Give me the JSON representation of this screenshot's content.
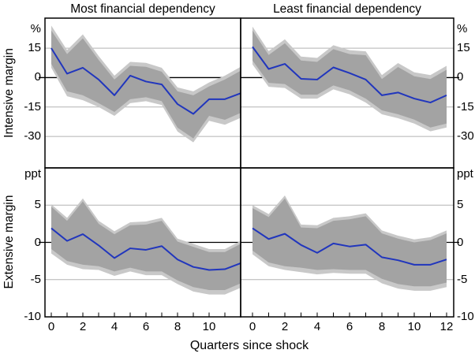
{
  "figure": {
    "columns": [
      "Most financial dependency",
      "Least financial dependency"
    ],
    "rows": [
      "Intensive margin",
      "Extensive margin"
    ],
    "units": {
      "top": "%",
      "bottom": "ppt"
    },
    "xlabel": "Quarters since shock"
  },
  "colors": {
    "line": "#2136bd",
    "band_dark": "#a3a3a3",
    "band_light": "#c8c8c8",
    "grid": "#b3b3b3",
    "axis": "#000000",
    "background": "#ffffff"
  },
  "axes": {
    "rows": [
      {
        "unit": "%",
        "yticks": [
          15,
          0,
          -15,
          -30
        ],
        "ylim": [
          -45,
          30
        ]
      },
      {
        "unit": "ppt",
        "yticks": [
          5,
          0,
          -5,
          -10
        ],
        "ylim": [
          -10,
          10
        ]
      }
    ],
    "x": {
      "min": 0,
      "max": 12,
      "ticks_labeled_left": [
        0,
        2,
        4,
        6,
        8,
        10
      ],
      "ticks_labeled_right": [
        0,
        2,
        4,
        6,
        8,
        10,
        12
      ]
    }
  },
  "chart_data": [
    {
      "type": "line",
      "row": 0,
      "col": 0,
      "title": "Most financial dependency",
      "ylabel": "Intensive margin",
      "unit": "%",
      "x": [
        0,
        1,
        2,
        3,
        4,
        5,
        6,
        7,
        8,
        9,
        10,
        11,
        12
      ],
      "line": [
        15,
        2,
        5,
        -1,
        -9,
        1,
        -2,
        -3.5,
        -13.5,
        -18.5,
        -11,
        -11,
        -8
      ],
      "band_dark": {
        "hi": [
          24,
          12,
          20,
          9,
          -1,
          6,
          5.5,
          3,
          -7,
          -9,
          -4.5,
          -1,
          3.5
        ],
        "lo": [
          7,
          -7,
          -9,
          -13,
          -17.5,
          -11,
          -10,
          -12,
          -25.5,
          -31,
          -19.5,
          -21.5,
          -18
        ]
      },
      "band_light": {
        "hi": [
          26.5,
          14,
          22,
          11,
          1,
          8,
          7.5,
          5,
          -5,
          -7,
          -2.5,
          1,
          5.5
        ],
        "lo": [
          5,
          -9.5,
          -11.5,
          -15,
          -19.5,
          -13,
          -12,
          -14,
          -27.5,
          -33,
          -22,
          -24,
          -20.5
        ]
      }
    },
    {
      "type": "line",
      "row": 0,
      "col": 1,
      "title": "Least financial dependency",
      "ylabel": "Intensive margin",
      "unit": "%",
      "x": [
        0,
        1,
        2,
        3,
        4,
        5,
        6,
        7,
        8,
        9,
        10,
        11,
        12
      ],
      "line": [
        15.7,
        4.4,
        7,
        -0.6,
        -1,
        5.2,
        2.3,
        -1,
        -9,
        -7.6,
        -10.7,
        -12.7,
        -9
      ],
      "band_dark": {
        "hi": [
          24,
          11.5,
          17.5,
          8.7,
          8,
          14.5,
          12,
          11.4,
          -0.7,
          5.4,
          0.7,
          -0.7,
          4
        ],
        "lo": [
          8.7,
          -2.7,
          -3.3,
          -8.7,
          -8.7,
          -4,
          -6.5,
          -10.7,
          -16.7,
          -18.7,
          -21.4,
          -25.4,
          -23.4
        ]
      },
      "band_light": {
        "hi": [
          26,
          13.5,
          19.5,
          10.7,
          10,
          16.5,
          14,
          13.4,
          1.3,
          7.4,
          2.7,
          1.3,
          6
        ],
        "lo": [
          6.7,
          -4.7,
          -5.3,
          -10.7,
          -10.7,
          -6,
          -8.5,
          -12.7,
          -18.7,
          -20.7,
          -23.4,
          -27.4,
          -25.4
        ]
      }
    },
    {
      "type": "line",
      "row": 1,
      "col": 0,
      "title": "Most financial dependency",
      "ylabel": "Extensive margin",
      "unit": "ppt",
      "x": [
        0,
        1,
        2,
        3,
        4,
        5,
        6,
        7,
        8,
        9,
        10,
        11,
        12
      ],
      "line": [
        1.9,
        0.2,
        1.1,
        -0.4,
        -2.1,
        -0.8,
        -1.0,
        -0.5,
        -2.3,
        -3.3,
        -3.7,
        -3.6,
        -2.8
      ],
      "band_dark": {
        "hi": [
          4.8,
          2.9,
          5.5,
          2.5,
          1.1,
          2.3,
          2.4,
          2.9,
          0.1,
          -0.6,
          -1.3,
          -1.3,
          -0.2
        ],
        "lo": [
          -0.9,
          -2.5,
          -3.0,
          -3.2,
          -3.9,
          -3.4,
          -3.9,
          -3.9,
          -5.1,
          -6.0,
          -6.4,
          -6.4,
          -5.5
        ]
      },
      "band_light": {
        "hi": [
          5.1,
          3.3,
          5.9,
          2.9,
          1.5,
          2.7,
          2.8,
          3.3,
          0.5,
          -0.2,
          -0.9,
          -0.9,
          0.2
        ],
        "lo": [
          -1.5,
          -3.0,
          -3.6,
          -3.7,
          -4.5,
          -3.9,
          -4.4,
          -4.4,
          -5.6,
          -6.6,
          -7.0,
          -7.0,
          -6.1
        ]
      }
    },
    {
      "type": "line",
      "row": 1,
      "col": 1,
      "title": "Least financial dependency",
      "ylabel": "Extensive margin",
      "unit": "ppt",
      "x": [
        0,
        1,
        2,
        3,
        4,
        5,
        6,
        7,
        8,
        9,
        10,
        11,
        12
      ],
      "line": [
        1.9,
        0.45,
        1.15,
        -0.35,
        -1.4,
        -0.15,
        -0.55,
        -0.3,
        -2.0,
        -2.4,
        -3.0,
        -3.0,
        -2.3
      ],
      "band_dark": {
        "hi": [
          4.6,
          3.4,
          5.9,
          2.0,
          1.9,
          2.9,
          3.1,
          3.5,
          1.2,
          0.5,
          0.0,
          0.3,
          1.2
        ],
        "lo": [
          -1.1,
          -2.7,
          -3.2,
          -3.4,
          -3.7,
          -3.6,
          -3.7,
          -3.7,
          -4.9,
          -5.6,
          -5.9,
          -5.9,
          -5.4
        ]
      },
      "band_light": {
        "hi": [
          5.0,
          3.8,
          6.3,
          2.4,
          2.3,
          3.3,
          3.5,
          3.9,
          1.6,
          0.9,
          0.4,
          0.7,
          1.6
        ],
        "lo": [
          -1.6,
          -3.2,
          -3.7,
          -4.0,
          -4.3,
          -4.1,
          -4.2,
          -4.2,
          -5.5,
          -6.2,
          -6.5,
          -6.5,
          -6.0
        ]
      }
    }
  ]
}
